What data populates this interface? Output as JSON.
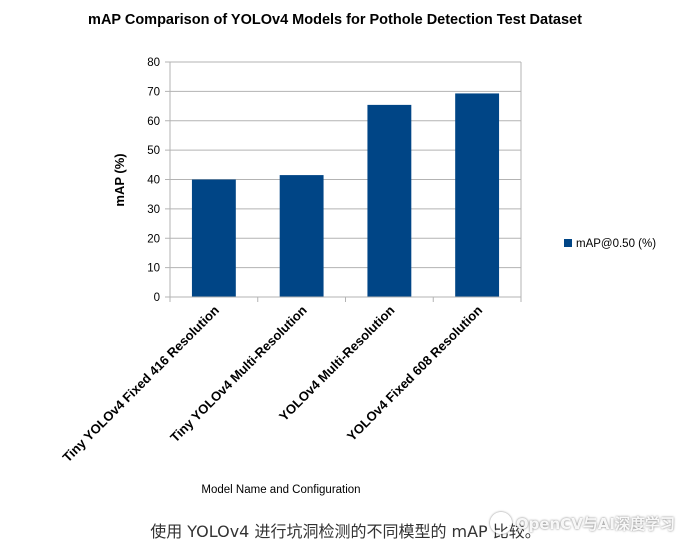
{
  "chart_data": {
    "type": "bar",
    "title": "mAP Comparison of YOLOv4 Models for Pothole Detection Test Dataset",
    "xlabel": "Model Name and Configuration",
    "ylabel": "mAP (%)",
    "ylim": [
      0,
      80
    ],
    "yticks": [
      0,
      10,
      20,
      30,
      40,
      50,
      60,
      70,
      80
    ],
    "grid": true,
    "legend_position": "right",
    "categories": [
      "Tiny YOLOv4 Fixed 416 Resolution",
      "Tiny YOLOv4 Multi-Resolution",
      "YOLOv4 Multi-Resolution",
      "YOLOv4 Fixed 608 Resolution"
    ],
    "series": [
      {
        "name": "mAP@0.50 (%)",
        "values": [
          40,
          41.5,
          65.4,
          69.3
        ],
        "color": "#004586"
      }
    ]
  },
  "caption": "使用 YOLOv4 进行坑洞检测的不同模型的 mAP 比较。",
  "watermark": "OpenCV与AI深度学习"
}
